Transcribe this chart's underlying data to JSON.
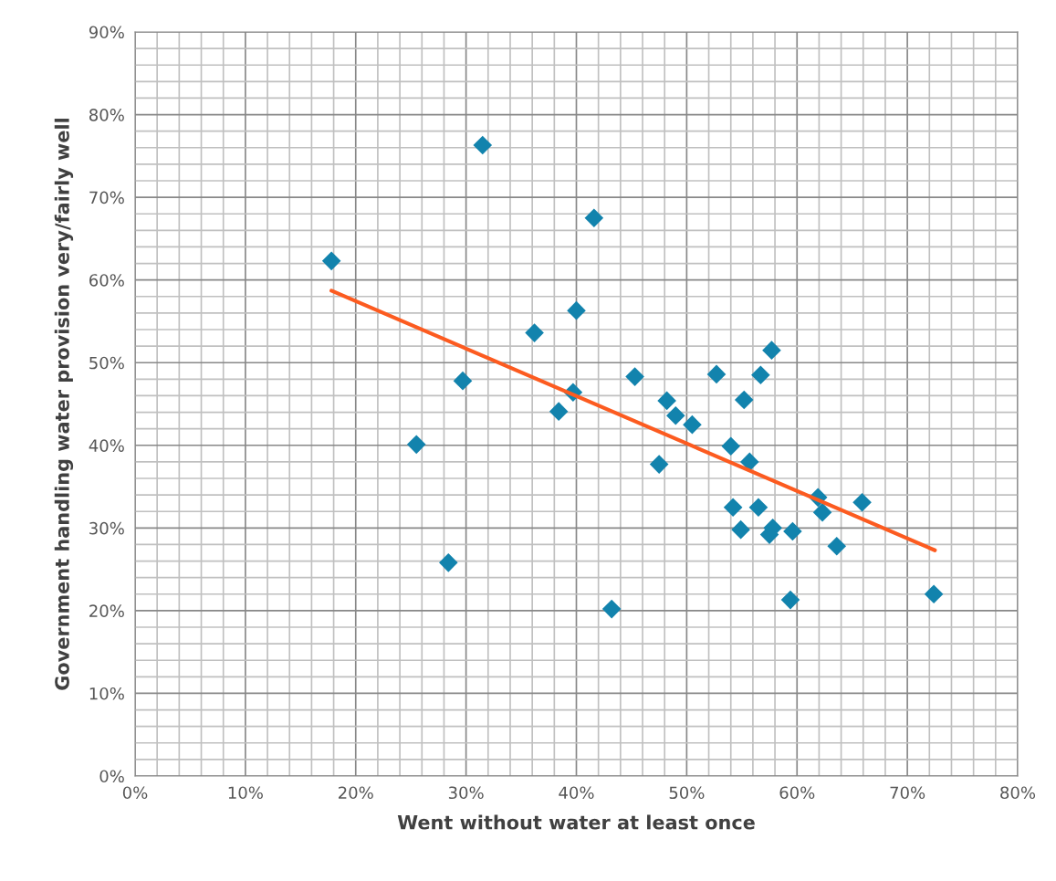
{
  "chart_data": {
    "type": "scatter",
    "xlabel": "Went without water at least once",
    "ylabel": "Government handling water provision very/fairly well",
    "series": [
      {
        "color": "#1283ad",
        "marker": "diamond",
        "x": [
          17.8,
          31.5,
          41.6,
          25.5,
          28.4,
          29.7,
          36.2,
          40.0,
          39.7,
          38.4,
          43.2,
          45.3,
          47.5,
          48.2,
          49.0,
          50.5,
          52.7,
          54.0,
          54.2,
          54.9,
          55.2,
          55.7,
          56.5,
          56.7,
          57.7,
          57.5,
          57.8,
          59.6,
          59.4,
          61.9,
          62.3,
          63.6,
          65.9,
          72.4
        ],
        "values": [
          62.3,
          76.3,
          67.5,
          40.1,
          25.8,
          47.8,
          53.6,
          56.3,
          46.4,
          44.1,
          20.2,
          48.3,
          37.7,
          45.4,
          43.6,
          42.5,
          48.6,
          39.9,
          32.5,
          29.8,
          45.5,
          38.0,
          32.5,
          48.5,
          51.5,
          29.2,
          30.0,
          29.6,
          21.3,
          33.7,
          31.9,
          27.8,
          33.1,
          22.0
        ]
      },
      {
        "type": "line",
        "color": "#fc5b20",
        "marker": "none",
        "line_style": "solid",
        "x": [
          17.8,
          72.5
        ],
        "values": [
          58.7,
          27.3
        ]
      }
    ],
    "xlim": [
      0,
      80
    ],
    "ylim": [
      0,
      90
    ],
    "xticks": [
      {
        "value": 0,
        "label": "0%"
      },
      {
        "value": 10,
        "label": "10%"
      },
      {
        "value": 20,
        "label": "20%"
      },
      {
        "value": 30,
        "label": "30%"
      },
      {
        "value": 40,
        "label": "40%"
      },
      {
        "value": 50,
        "label": "50%"
      },
      {
        "value": 60,
        "label": "60%"
      },
      {
        "value": 70,
        "label": "70%"
      },
      {
        "value": 80,
        "label": "80%"
      }
    ],
    "yticks": [
      {
        "value": 0,
        "label": "0%"
      },
      {
        "value": 10,
        "label": "10%"
      },
      {
        "value": 20,
        "label": "20%"
      },
      {
        "value": 30,
        "label": "30%"
      },
      {
        "value": 40,
        "label": "40%"
      },
      {
        "value": 50,
        "label": "50%"
      },
      {
        "value": 60,
        "label": "60%"
      },
      {
        "value": 70,
        "label": "70%"
      },
      {
        "value": 80,
        "label": "80%"
      },
      {
        "value": 90,
        "label": "90%"
      }
    ],
    "grid": true
  }
}
